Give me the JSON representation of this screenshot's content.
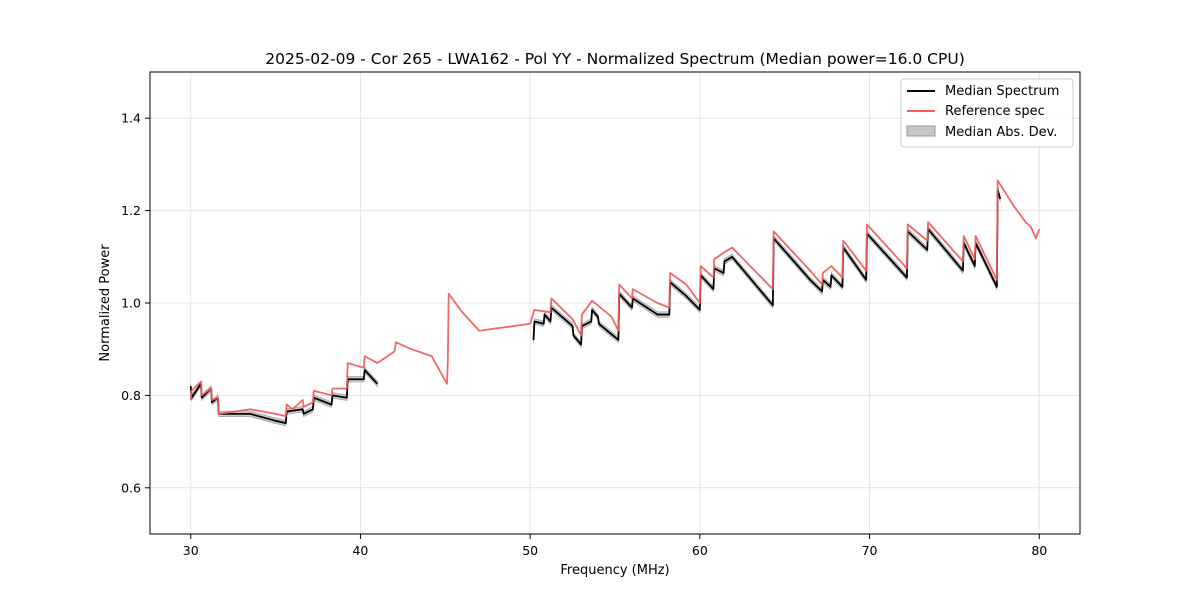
{
  "chart_data": {
    "type": "line",
    "title": "2025-02-09 - Cor 265 - LWA162 - Pol YY - Normalized Spectrum (Median power=16.0 CPU)",
    "xlabel": "Frequency (MHz)",
    "ylabel": "Normalized Power",
    "xlim": [
      27.6,
      82.4
    ],
    "ylim": [
      0.5,
      1.5
    ],
    "xticks": [
      30,
      40,
      50,
      60,
      70,
      80
    ],
    "yticks": [
      0.6,
      0.8,
      1.0,
      1.2,
      1.4
    ],
    "xtick_labels": [
      "30",
      "40",
      "50",
      "60",
      "70",
      "80"
    ],
    "ytick_labels": [
      "0.6",
      "0.8",
      "1.0",
      "1.2",
      "1.4"
    ],
    "grid": true,
    "legend": {
      "position": "top-right",
      "entries": [
        "Median Spectrum",
        "Reference spec",
        "Median Abs. Dev."
      ]
    },
    "colors": {
      "median": "#000000",
      "reference": "#ef5b5b",
      "mad": "#bfbfbf"
    },
    "mad_halfwidth": 0.006,
    "series": [
      {
        "name": "Median Spectrum",
        "segments": [
          [
            [
              30.0,
              0.82
            ],
            [
              30.05,
              0.795
            ],
            [
              30.6,
              0.825
            ],
            [
              30.65,
              0.795
            ],
            [
              31.2,
              0.815
            ],
            [
              31.25,
              0.785
            ],
            [
              31.6,
              0.795
            ],
            [
              31.65,
              0.76
            ],
            [
              33.5,
              0.76
            ],
            [
              35.0,
              0.745
            ],
            [
              35.6,
              0.74
            ],
            [
              35.65,
              0.765
            ],
            [
              36.6,
              0.77
            ],
            [
              36.65,
              0.76
            ],
            [
              37.2,
              0.77
            ],
            [
              37.25,
              0.795
            ],
            [
              38.3,
              0.78
            ],
            [
              38.35,
              0.8
            ],
            [
              39.2,
              0.795
            ],
            [
              39.25,
              0.835
            ],
            [
              40.2,
              0.835
            ],
            [
              40.25,
              0.855
            ],
            [
              41.0,
              0.825
            ]
          ],
          [
            [
              50.2,
              0.92
            ],
            [
              50.25,
              0.96
            ],
            [
              50.8,
              0.955
            ],
            [
              50.85,
              0.975
            ],
            [
              51.2,
              0.96
            ],
            [
              51.25,
              0.99
            ],
            [
              52.5,
              0.95
            ],
            [
              52.55,
              0.93
            ],
            [
              53.0,
              0.91
            ],
            [
              53.05,
              0.95
            ],
            [
              53.6,
              0.96
            ],
            [
              53.65,
              0.985
            ],
            [
              54.0,
              0.97
            ],
            [
              54.05,
              0.955
            ],
            [
              55.2,
              0.92
            ],
            [
              55.25,
              1.02
            ],
            [
              56.0,
              0.99
            ],
            [
              56.05,
              1.01
            ],
            [
              57.5,
              0.975
            ],
            [
              58.2,
              0.975
            ],
            [
              58.25,
              1.045
            ],
            [
              59.2,
              1.015
            ],
            [
              60.0,
              0.985
            ],
            [
              60.05,
              1.06
            ],
            [
              60.8,
              1.03
            ],
            [
              60.85,
              1.075
            ],
            [
              61.4,
              1.065
            ],
            [
              61.45,
              1.09
            ],
            [
              61.9,
              1.1
            ],
            [
              64.3,
              0.995
            ],
            [
              64.35,
              1.14
            ],
            [
              66.5,
              1.05
            ],
            [
              67.2,
              1.025
            ],
            [
              67.25,
              1.05
            ],
            [
              67.7,
              1.035
            ],
            [
              67.75,
              1.06
            ],
            [
              68.4,
              1.035
            ],
            [
              68.45,
              1.12
            ],
            [
              69.8,
              1.05
            ],
            [
              69.85,
              1.15
            ],
            [
              72.2,
              1.055
            ],
            [
              72.25,
              1.155
            ],
            [
              73.4,
              1.115
            ],
            [
              73.45,
              1.16
            ],
            [
              75.5,
              1.07
            ],
            [
              75.55,
              1.13
            ],
            [
              76.2,
              1.08
            ],
            [
              76.25,
              1.13
            ],
            [
              77.5,
              1.035
            ],
            [
              77.55,
              1.245
            ],
            [
              77.7,
              1.225
            ]
          ]
        ]
      },
      {
        "name": "Reference spec",
        "segments": [
          [
            [
              30.0,
              0.79
            ],
            [
              30.05,
              0.81
            ],
            [
              30.6,
              0.83
            ],
            [
              30.65,
              0.8
            ],
            [
              31.2,
              0.815
            ],
            [
              31.25,
              0.79
            ],
            [
              31.6,
              0.795
            ],
            [
              31.65,
              0.76
            ],
            [
              33.5,
              0.77
            ],
            [
              35.0,
              0.76
            ],
            [
              35.6,
              0.755
            ],
            [
              35.65,
              0.78
            ],
            [
              36.0,
              0.77
            ],
            [
              36.6,
              0.79
            ],
            [
              36.65,
              0.775
            ],
            [
              37.2,
              0.785
            ],
            [
              37.25,
              0.81
            ],
            [
              38.3,
              0.8
            ],
            [
              38.35,
              0.815
            ],
            [
              39.2,
              0.815
            ],
            [
              39.25,
              0.87
            ],
            [
              40.2,
              0.86
            ],
            [
              40.25,
              0.885
            ],
            [
              41.0,
              0.87
            ],
            [
              42.0,
              0.895
            ],
            [
              42.1,
              0.915
            ],
            [
              43.0,
              0.9
            ],
            [
              44.2,
              0.885
            ],
            [
              45.1,
              0.825
            ],
            [
              45.15,
              0.875
            ],
            [
              45.2,
              1.02
            ],
            [
              46.0,
              0.98
            ],
            [
              47.0,
              0.94
            ],
            [
              48.0,
              0.945
            ],
            [
              49.0,
              0.95
            ],
            [
              50.0,
              0.955
            ],
            [
              50.25,
              0.985
            ],
            [
              51.2,
              0.98
            ],
            [
              51.25,
              1.01
            ],
            [
              52.5,
              0.965
            ],
            [
              53.0,
              0.93
            ],
            [
              53.05,
              0.975
            ],
            [
              53.65,
              1.005
            ],
            [
              54.8,
              0.97
            ],
            [
              55.2,
              0.94
            ],
            [
              55.25,
              1.04
            ],
            [
              56.0,
              1.01
            ],
            [
              56.05,
              1.03
            ],
            [
              57.5,
              1.0
            ],
            [
              58.2,
              0.99
            ],
            [
              58.25,
              1.065
            ],
            [
              59.2,
              1.04
            ],
            [
              60.0,
              1.0
            ],
            [
              60.05,
              1.08
            ],
            [
              60.8,
              1.055
            ],
            [
              60.85,
              1.095
            ],
            [
              61.45,
              1.11
            ],
            [
              61.9,
              1.12
            ],
            [
              64.3,
              1.03
            ],
            [
              64.35,
              1.155
            ],
            [
              66.5,
              1.07
            ],
            [
              67.2,
              1.04
            ],
            [
              67.25,
              1.065
            ],
            [
              67.75,
              1.08
            ],
            [
              68.4,
              1.055
            ],
            [
              68.45,
              1.135
            ],
            [
              69.8,
              1.07
            ],
            [
              69.85,
              1.17
            ],
            [
              72.2,
              1.075
            ],
            [
              72.25,
              1.17
            ],
            [
              73.4,
              1.135
            ],
            [
              73.45,
              1.175
            ],
            [
              75.5,
              1.09
            ],
            [
              75.55,
              1.145
            ],
            [
              76.2,
              1.095
            ],
            [
              76.25,
              1.145
            ],
            [
              77.5,
              1.05
            ],
            [
              77.55,
              1.265
            ],
            [
              78.5,
              1.21
            ],
            [
              79.2,
              1.175
            ],
            [
              79.5,
              1.165
            ],
            [
              79.8,
              1.14
            ],
            [
              80.0,
              1.16
            ]
          ]
        ]
      }
    ]
  }
}
